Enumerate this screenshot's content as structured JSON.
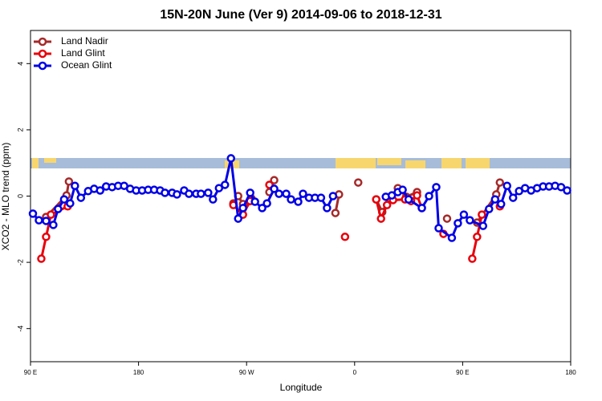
{
  "chart_data": {
    "type": "line",
    "title": "15N-20N June (Ver 9)   2014-09-06 to 2018-12-31",
    "xlabel": "Longitude",
    "ylabel": "XCO2 - MLO trend (ppm)",
    "xlim": [
      90,
      540
    ],
    "xticks": [
      {
        "value": 90,
        "label": "90 E"
      },
      180,
      {
        "value": 270,
        "label": "90 W"
      },
      {
        "value": 360,
        "label": "0"
      },
      {
        "value": 450,
        "label": "90 E"
      },
      {
        "value": 540,
        "label": "180"
      }
    ],
    "ylim": [
      -5,
      5
    ],
    "yticks": [
      -4,
      -2,
      0,
      2,
      4
    ],
    "legend": "top-left",
    "series": [
      {
        "name": "Land Nadir",
        "color": "#a52a2a",
        "x": [
          103,
          120,
          122,
          null,
          259,
          263,
          267,
          274,
          null,
          289,
          293,
          null,
          344,
          347,
          null,
          363,
          null,
          378,
          383,
          389,
          396,
          403,
          412,
          null,
          437,
          null,
          462,
          478,
          481
        ],
        "values": [
          -0.63,
          0.02,
          0.44,
          null,
          -0.22,
          0,
          -0.24,
          -0.07,
          null,
          0.12,
          0.48,
          null,
          -0.51,
          0.05,
          null,
          0.41,
          null,
          -0.1,
          -0.48,
          -0.07,
          0.24,
          -0.02,
          0.12,
          null,
          -0.68,
          null,
          -0.8,
          0.05,
          0.41
        ]
      },
      {
        "name": "Land Glint",
        "color": "#e8000b",
        "x": [
          99,
          103,
          107,
          121,
          null,
          259,
          267,
          273,
          null,
          289,
          null,
          352,
          null,
          378,
          382,
          387,
          392,
          402,
          407,
          412,
          416,
          null,
          434,
          null,
          458,
          462,
          466,
          null,
          481
        ],
        "values": [
          -1.89,
          -1.23,
          -0.56,
          -0.31,
          null,
          -0.27,
          -0.56,
          -0.15,
          null,
          0.34,
          null,
          -1.23,
          null,
          -0.1,
          -0.68,
          -0.27,
          -0.12,
          -0.1,
          -0.15,
          0.02,
          -0.36,
          null,
          -1.14,
          null,
          -1.89,
          -1.23,
          -0.56,
          null,
          -0.31
        ]
      },
      {
        "name": "Ocean Glint",
        "color": "#0000e6",
        "x": [
          92,
          97,
          103,
          109,
          113,
          118,
          123,
          127,
          132,
          138,
          143,
          148,
          153,
          158,
          163,
          168,
          173,
          178,
          183,
          188,
          193,
          198,
          202,
          208,
          212,
          218,
          222,
          228,
          232,
          238,
          242,
          247,
          252,
          257,
          263,
          267,
          273,
          277,
          283,
          287,
          293,
          297,
          303,
          307,
          313,
          317,
          322,
          327,
          332,
          337,
          342,
          null,
          386,
          391,
          396,
          400,
          405,
          416,
          422,
          428,
          430,
          441,
          446,
          451,
          456,
          467,
          472,
          477,
          482,
          487,
          492,
          497,
          502,
          507,
          512,
          517,
          522,
          527,
          532,
          537
        ],
        "values": [
          -0.53,
          -0.73,
          -0.75,
          -0.87,
          -0.39,
          -0.1,
          -0.22,
          0.31,
          -0.05,
          0.15,
          0.22,
          0.17,
          0.29,
          0.27,
          0.31,
          0.31,
          0.22,
          0.17,
          0.17,
          0.19,
          0.19,
          0.17,
          0.1,
          0.1,
          0.05,
          0.17,
          0.07,
          0.07,
          0.07,
          0.1,
          -0.1,
          0.24,
          0.34,
          1.14,
          -0.68,
          -0.36,
          0.1,
          -0.17,
          -0.36,
          -0.22,
          0.22,
          0.07,
          0.07,
          -0.1,
          -0.17,
          0.07,
          -0.05,
          -0.05,
          -0.05,
          -0.36,
          0,
          null,
          -0.02,
          0.02,
          0.12,
          0.19,
          -0.1,
          -0.36,
          0,
          0.27,
          -0.97,
          -1.26,
          -0.82,
          -0.56,
          -0.73,
          -0.9,
          -0.39,
          -0.1,
          -0.24,
          0.31,
          -0.05,
          0.15,
          0.24,
          0.17,
          0.24,
          0.29,
          0.29,
          0.31,
          0.27,
          0.17
        ]
      }
    ]
  }
}
